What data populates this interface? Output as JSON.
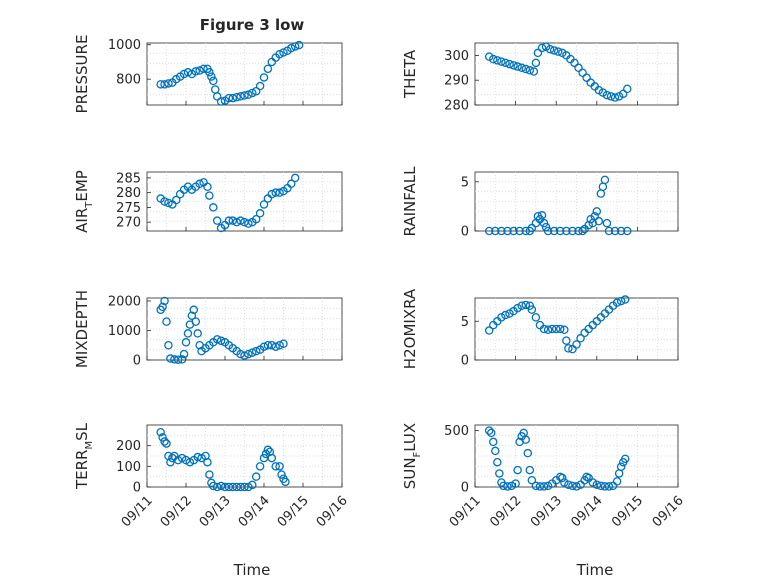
{
  "figure": {
    "title": "Figure 3 low",
    "xlabel": "Time"
  },
  "colors": {
    "marker": "#0072BD",
    "axis": "#262626",
    "grid": "#d9d9d9"
  },
  "chart_data": [
    {
      "type": "scatter",
      "ylabel": "PRESSURE",
      "ylabel_sub": "",
      "ylabel_post": "",
      "ylim": [
        650,
        1010
      ],
      "yticks": [
        800,
        1000
      ],
      "ytick_labels": [
        "800",
        "1000"
      ],
      "xlim": [
        0,
        5
      ],
      "xtick_labels": [],
      "grid": true,
      "points": [
        [
          0.35,
          770
        ],
        [
          0.45,
          770
        ],
        [
          0.55,
          775
        ],
        [
          0.65,
          780
        ],
        [
          0.75,
          800
        ],
        [
          0.85,
          815
        ],
        [
          0.95,
          830
        ],
        [
          1.05,
          840
        ],
        [
          1.15,
          830
        ],
        [
          1.25,
          845
        ],
        [
          1.35,
          850
        ],
        [
          1.45,
          860
        ],
        [
          1.55,
          860
        ],
        [
          1.6,
          840
        ],
        [
          1.65,
          815
        ],
        [
          1.7,
          790
        ],
        [
          1.75,
          740
        ],
        [
          1.8,
          700
        ],
        [
          1.9,
          670
        ],
        [
          2.0,
          675
        ],
        [
          2.1,
          690
        ],
        [
          2.2,
          690
        ],
        [
          2.3,
          695
        ],
        [
          2.4,
          700
        ],
        [
          2.5,
          705
        ],
        [
          2.6,
          710
        ],
        [
          2.7,
          720
        ],
        [
          2.8,
          730
        ],
        [
          2.9,
          760
        ],
        [
          3.0,
          810
        ],
        [
          3.1,
          860
        ],
        [
          3.2,
          900
        ],
        [
          3.3,
          925
        ],
        [
          3.4,
          945
        ],
        [
          3.5,
          955
        ],
        [
          3.6,
          965
        ],
        [
          3.7,
          980
        ],
        [
          3.8,
          990
        ],
        [
          3.9,
          998
        ]
      ]
    },
    {
      "type": "scatter",
      "ylabel": "THETA",
      "ylabel_sub": "",
      "ylabel_post": "",
      "ylim": [
        280,
        305
      ],
      "yticks": [
        280,
        290,
        300
      ],
      "ytick_labels": [
        "280",
        "290",
        "300"
      ],
      "xlim": [
        0,
        5
      ],
      "xtick_labels": [],
      "grid": true,
      "points": [
        [
          0.35,
          299.5
        ],
        [
          0.45,
          298.5
        ],
        [
          0.55,
          298
        ],
        [
          0.65,
          297.5
        ],
        [
          0.75,
          297
        ],
        [
          0.85,
          296.5
        ],
        [
          0.95,
          296
        ],
        [
          1.05,
          295.5
        ],
        [
          1.15,
          295
        ],
        [
          1.25,
          294.5
        ],
        [
          1.35,
          294
        ],
        [
          1.45,
          293.5
        ],
        [
          1.5,
          297
        ],
        [
          1.55,
          301
        ],
        [
          1.65,
          303
        ],
        [
          1.75,
          303.5
        ],
        [
          1.85,
          302.5
        ],
        [
          1.95,
          302
        ],
        [
          2.05,
          301.5
        ],
        [
          2.15,
          301
        ],
        [
          2.25,
          300
        ],
        [
          2.35,
          298.5
        ],
        [
          2.45,
          297
        ],
        [
          2.55,
          295
        ],
        [
          2.65,
          293
        ],
        [
          2.75,
          291
        ],
        [
          2.85,
          289
        ],
        [
          2.95,
          287.5
        ],
        [
          3.05,
          286
        ],
        [
          3.15,
          285
        ],
        [
          3.25,
          284
        ],
        [
          3.35,
          283.5
        ],
        [
          3.45,
          283
        ],
        [
          3.55,
          283.5
        ],
        [
          3.65,
          284.5
        ],
        [
          3.75,
          286.5
        ]
      ]
    },
    {
      "type": "scatter",
      "ylabel": "AIR",
      "ylabel_sub": "T",
      "ylabel_post": "EMP",
      "ylim": [
        267,
        287
      ],
      "yticks": [
        270,
        275,
        280,
        285
      ],
      "ytick_labels": [
        "270",
        "275",
        "280",
        "285"
      ],
      "xlim": [
        0,
        5
      ],
      "xtick_labels": [],
      "grid": true,
      "points": [
        [
          0.35,
          278
        ],
        [
          0.45,
          277
        ],
        [
          0.55,
          276.5
        ],
        [
          0.65,
          276
        ],
        [
          0.75,
          277.5
        ],
        [
          0.85,
          279.5
        ],
        [
          0.95,
          281
        ],
        [
          1.05,
          282
        ],
        [
          1.15,
          281
        ],
        [
          1.25,
          282
        ],
        [
          1.35,
          283
        ],
        [
          1.45,
          283.5
        ],
        [
          1.55,
          282
        ],
        [
          1.6,
          279
        ],
        [
          1.7,
          275
        ],
        [
          1.8,
          270.5
        ],
        [
          1.9,
          268
        ],
        [
          2.0,
          269
        ],
        [
          2.1,
          270.5
        ],
        [
          2.2,
          270.5
        ],
        [
          2.3,
          270
        ],
        [
          2.4,
          270.5
        ],
        [
          2.5,
          270
        ],
        [
          2.6,
          269.5
        ],
        [
          2.7,
          270
        ],
        [
          2.8,
          271
        ],
        [
          2.9,
          273
        ],
        [
          3.0,
          276
        ],
        [
          3.1,
          278
        ],
        [
          3.2,
          279.5
        ],
        [
          3.3,
          280
        ],
        [
          3.4,
          280
        ],
        [
          3.5,
          280.5
        ],
        [
          3.6,
          281.5
        ],
        [
          3.7,
          283
        ],
        [
          3.8,
          285
        ]
      ]
    },
    {
      "type": "scatter",
      "ylabel": "RAINFALL",
      "ylabel_sub": "",
      "ylabel_post": "",
      "ylim": [
        0,
        6
      ],
      "yticks": [
        0,
        5
      ],
      "ytick_labels": [
        "0",
        "5"
      ],
      "xlim": [
        0,
        5
      ],
      "xtick_labels": [],
      "grid": true,
      "points": [
        [
          0.35,
          0
        ],
        [
          0.5,
          0
        ],
        [
          0.65,
          0
        ],
        [
          0.8,
          0
        ],
        [
          0.95,
          0
        ],
        [
          1.1,
          0
        ],
        [
          1.25,
          0
        ],
        [
          1.35,
          0
        ],
        [
          1.4,
          0.3
        ],
        [
          1.5,
          0.8
        ],
        [
          1.55,
          1.5
        ],
        [
          1.6,
          1.2
        ],
        [
          1.65,
          1.6
        ],
        [
          1.7,
          0.8
        ],
        [
          1.75,
          0.4
        ],
        [
          1.8,
          0
        ],
        [
          1.95,
          0
        ],
        [
          2.1,
          0
        ],
        [
          2.25,
          0
        ],
        [
          2.4,
          0
        ],
        [
          2.55,
          0
        ],
        [
          2.65,
          0
        ],
        [
          2.7,
          0.2
        ],
        [
          2.8,
          0.6
        ],
        [
          2.85,
          1.2
        ],
        [
          2.9,
          0.8
        ],
        [
          2.95,
          1.5
        ],
        [
          3.0,
          2.0
        ],
        [
          3.05,
          1.0
        ],
        [
          3.1,
          3.8
        ],
        [
          3.15,
          4.5
        ],
        [
          3.2,
          5.2
        ],
        [
          3.25,
          0.8
        ],
        [
          3.3,
          0
        ],
        [
          3.45,
          0
        ],
        [
          3.6,
          0
        ],
        [
          3.75,
          0
        ]
      ]
    },
    {
      "type": "scatter",
      "ylabel": "MIXDEPTH",
      "ylabel_sub": "",
      "ylabel_post": "",
      "ylim": [
        0,
        2100
      ],
      "yticks": [
        0,
        1000,
        2000
      ],
      "ytick_labels": [
        "0",
        "1000",
        "2000"
      ],
      "xlim": [
        0,
        5
      ],
      "xtick_labels": [],
      "grid": true,
      "points": [
        [
          0.35,
          1700
        ],
        [
          0.4,
          1800
        ],
        [
          0.45,
          2000
        ],
        [
          0.5,
          1300
        ],
        [
          0.55,
          500
        ],
        [
          0.6,
          50
        ],
        [
          0.7,
          20
        ],
        [
          0.8,
          10
        ],
        [
          0.9,
          20
        ],
        [
          0.95,
          200
        ],
        [
          1.0,
          600
        ],
        [
          1.05,
          900
        ],
        [
          1.1,
          1200
        ],
        [
          1.15,
          1500
        ],
        [
          1.2,
          1700
        ],
        [
          1.25,
          1300
        ],
        [
          1.3,
          900
        ],
        [
          1.35,
          500
        ],
        [
          1.4,
          300
        ],
        [
          1.5,
          400
        ],
        [
          1.6,
          500
        ],
        [
          1.7,
          600
        ],
        [
          1.8,
          700
        ],
        [
          1.9,
          650
        ],
        [
          2.0,
          600
        ],
        [
          2.1,
          500
        ],
        [
          2.2,
          400
        ],
        [
          2.3,
          300
        ],
        [
          2.4,
          200
        ],
        [
          2.5,
          150
        ],
        [
          2.6,
          200
        ],
        [
          2.7,
          250
        ],
        [
          2.8,
          300
        ],
        [
          2.9,
          350
        ],
        [
          3.0,
          450
        ],
        [
          3.1,
          500
        ],
        [
          3.2,
          500
        ],
        [
          3.3,
          450
        ],
        [
          3.4,
          500
        ],
        [
          3.5,
          550
        ]
      ]
    },
    {
      "type": "scatter",
      "ylabel": "H2OMIXRA",
      "ylabel_sub": "",
      "ylabel_post": "",
      "ylim": [
        0,
        8
      ],
      "yticks": [
        0,
        5
      ],
      "ytick_labels": [
        "0",
        "5"
      ],
      "xlim": [
        0,
        5
      ],
      "xtick_labels": [],
      "grid": true,
      "points": [
        [
          0.35,
          3.8
        ],
        [
          0.45,
          4.5
        ],
        [
          0.55,
          5.0
        ],
        [
          0.65,
          5.5
        ],
        [
          0.75,
          5.8
        ],
        [
          0.85,
          6.0
        ],
        [
          0.95,
          6.3
        ],
        [
          1.05,
          6.7
        ],
        [
          1.15,
          7.0
        ],
        [
          1.25,
          7.1
        ],
        [
          1.35,
          7.0
        ],
        [
          1.4,
          6.5
        ],
        [
          1.5,
          5.5
        ],
        [
          1.6,
          4.5
        ],
        [
          1.7,
          4.0
        ],
        [
          1.8,
          3.9
        ],
        [
          1.9,
          4.0
        ],
        [
          2.0,
          4.0
        ],
        [
          2.1,
          4.0
        ],
        [
          2.2,
          3.9
        ],
        [
          2.25,
          2.5
        ],
        [
          2.3,
          1.5
        ],
        [
          2.4,
          1.4
        ],
        [
          2.5,
          2.0
        ],
        [
          2.6,
          2.8
        ],
        [
          2.7,
          3.5
        ],
        [
          2.8,
          4.0
        ],
        [
          2.9,
          4.5
        ],
        [
          3.0,
          5.0
        ],
        [
          3.1,
          5.5
        ],
        [
          3.2,
          6.0
        ],
        [
          3.3,
          6.5
        ],
        [
          3.4,
          7.0
        ],
        [
          3.5,
          7.4
        ],
        [
          3.6,
          7.6
        ],
        [
          3.7,
          7.8
        ]
      ]
    },
    {
      "type": "scatter",
      "ylabel": "TERR",
      "ylabel_sub": "M",
      "ylabel_post": "SL",
      "ylim": [
        0,
        300
      ],
      "yticks": [
        0,
        100,
        200
      ],
      "ytick_labels": [
        "0",
        "100",
        "200"
      ],
      "xlim": [
        0,
        5
      ],
      "xtick_labels": [
        "09/11",
        "09/12",
        "09/13",
        "09/14",
        "09/15",
        "09/16"
      ],
      "grid": true,
      "points": [
        [
          0.35,
          265
        ],
        [
          0.4,
          240
        ],
        [
          0.45,
          220
        ],
        [
          0.5,
          210
        ],
        [
          0.55,
          150
        ],
        [
          0.6,
          120
        ],
        [
          0.65,
          140
        ],
        [
          0.7,
          150
        ],
        [
          0.8,
          130
        ],
        [
          0.9,
          140
        ],
        [
          1.0,
          130
        ],
        [
          1.1,
          120
        ],
        [
          1.2,
          130
        ],
        [
          1.3,
          145
        ],
        [
          1.4,
          140
        ],
        [
          1.5,
          150
        ],
        [
          1.55,
          120
        ],
        [
          1.6,
          60
        ],
        [
          1.65,
          20
        ],
        [
          1.7,
          5
        ],
        [
          1.8,
          0
        ],
        [
          1.9,
          5
        ],
        [
          2.0,
          0
        ],
        [
          2.1,
          0
        ],
        [
          2.2,
          0
        ],
        [
          2.3,
          0
        ],
        [
          2.4,
          0
        ],
        [
          2.5,
          0
        ],
        [
          2.6,
          0
        ],
        [
          2.7,
          10
        ],
        [
          2.8,
          50
        ],
        [
          2.9,
          100
        ],
        [
          3.0,
          140
        ],
        [
          3.05,
          160
        ],
        [
          3.1,
          180
        ],
        [
          3.15,
          170
        ],
        [
          3.2,
          140
        ],
        [
          3.3,
          100
        ],
        [
          3.4,
          100
        ],
        [
          3.45,
          60
        ],
        [
          3.5,
          40
        ],
        [
          3.55,
          25
        ]
      ]
    },
    {
      "type": "scatter",
      "ylabel": "SUN",
      "ylabel_sub": "F",
      "ylabel_post": "LUX",
      "ylim": [
        0,
        550
      ],
      "yticks": [
        0,
        500
      ],
      "ytick_labels": [
        "0",
        "500"
      ],
      "xlim": [
        0,
        5
      ],
      "xtick_labels": [
        "09/11",
        "09/12",
        "09/13",
        "09/14",
        "09/15",
        "09/16"
      ],
      "grid": true,
      "points": [
        [
          0.35,
          500
        ],
        [
          0.4,
          480
        ],
        [
          0.45,
          400
        ],
        [
          0.5,
          320
        ],
        [
          0.55,
          220
        ],
        [
          0.6,
          120
        ],
        [
          0.65,
          40
        ],
        [
          0.7,
          10
        ],
        [
          0.8,
          5
        ],
        [
          0.9,
          10
        ],
        [
          1.0,
          30
        ],
        [
          1.05,
          150
        ],
        [
          1.1,
          400
        ],
        [
          1.15,
          450
        ],
        [
          1.2,
          480
        ],
        [
          1.25,
          420
        ],
        [
          1.3,
          300
        ],
        [
          1.35,
          150
        ],
        [
          1.4,
          60
        ],
        [
          1.5,
          10
        ],
        [
          1.6,
          5
        ],
        [
          1.7,
          5
        ],
        [
          1.8,
          10
        ],
        [
          1.9,
          30
        ],
        [
          2.0,
          60
        ],
        [
          2.1,
          90
        ],
        [
          2.15,
          80
        ],
        [
          2.2,
          40
        ],
        [
          2.3,
          20
        ],
        [
          2.4,
          10
        ],
        [
          2.5,
          5
        ],
        [
          2.6,
          20
        ],
        [
          2.7,
          60
        ],
        [
          2.75,
          90
        ],
        [
          2.8,
          80
        ],
        [
          2.9,
          40
        ],
        [
          3.0,
          20
        ],
        [
          3.1,
          10
        ],
        [
          3.2,
          5
        ],
        [
          3.3,
          5
        ],
        [
          3.4,
          10
        ],
        [
          3.5,
          50
        ],
        [
          3.55,
          120
        ],
        [
          3.6,
          180
        ],
        [
          3.65,
          220
        ],
        [
          3.7,
          250
        ]
      ]
    }
  ]
}
